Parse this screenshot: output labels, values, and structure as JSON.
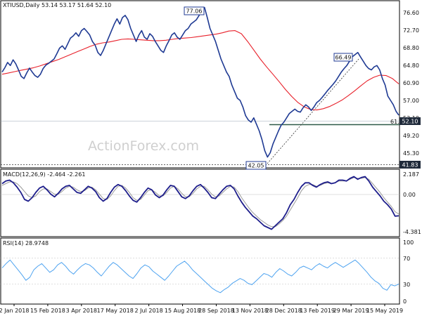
{
  "chart_data": [
    {
      "type": "candlestick",
      "header": "XTIUSD,Daily  53.14 53.17 51.64 52.10",
      "ylim": [
        40.2,
        78.2
      ],
      "y_ticks": [
        "76.60",
        "72.70",
        "68.80",
        "64.80",
        "60.90",
        "57.00",
        "53.10",
        "49.20",
        "45.30",
        "41.83"
      ],
      "x_ticks": [
        "2 Jan 2018",
        "15 Feb 2018",
        "3 Apr 2018",
        "17 May 2018",
        "2 Jul 2018",
        "15 Aug 2018",
        "28 Sep 2018",
        "13 Nov 2018",
        "28 Dec 2018",
        "13 Feb 2019",
        "29 Mar 2019",
        "15 May 2019"
      ],
      "price_series": [
        62.0,
        63.0,
        64.2,
        63.5,
        64.8,
        63.9,
        62.5,
        61.0,
        60.5,
        61.8,
        62.9,
        62.0,
        61.2,
        60.8,
        61.5,
        62.8,
        63.6,
        64.0,
        64.5,
        65.0,
        66.2,
        67.5,
        68.0,
        67.2,
        68.5,
        69.8,
        70.3,
        71.0,
        70.2,
        71.5,
        72.0,
        71.3,
        70.5,
        69.0,
        68.2,
        66.5,
        65.8,
        67.0,
        68.5,
        70.0,
        71.5,
        73.0,
        74.2,
        73.0,
        74.5,
        75.0,
        74.0,
        72.0,
        70.5,
        69.0,
        70.5,
        71.5,
        70.0,
        69.5,
        70.8,
        70.2,
        69.0,
        68.0,
        67.0,
        66.5,
        68.0,
        69.2,
        70.5,
        71.0,
        70.0,
        69.5,
        70.5,
        71.5,
        72.0,
        73.0,
        73.5,
        74.0,
        75.0,
        76.0,
        76.8,
        74.5,
        72.0,
        70.5,
        69.0,
        67.0,
        65.0,
        63.5,
        62.0,
        61.0,
        59.0,
        57.5,
        56.0,
        55.5,
        54.0,
        52.0,
        51.0,
        50.5,
        51.5,
        50.0,
        48.5,
        46.5,
        44.0,
        42.5,
        43.5,
        45.5,
        47.0,
        48.5,
        49.8,
        50.5,
        51.5,
        52.5,
        53.0,
        53.5,
        53.0,
        52.8,
        53.8,
        54.5,
        54.0,
        53.2,
        54.0,
        55.0,
        55.5,
        56.2,
        57.0,
        57.8,
        58.5,
        59.2,
        60.0,
        61.0,
        62.0,
        62.8,
        63.5,
        64.5,
        65.5,
        66.0,
        66.5,
        65.5,
        64.5,
        63.5,
        62.8,
        62.5,
        63.2,
        63.5,
        62.5,
        60.5,
        59.0,
        56.5,
        55.5,
        54.5,
        53.0,
        52.1
      ],
      "ma_series": [
        61.5,
        61.8,
        62.1,
        62.4,
        62.7,
        63.0,
        63.4,
        63.9,
        64.4,
        64.9,
        65.5,
        66.1,
        66.7,
        67.3,
        67.9,
        68.4,
        68.7,
        68.9,
        69.2,
        69.5,
        69.6,
        69.5,
        69.4,
        69.3,
        69.2,
        69.2,
        69.3,
        69.5,
        69.7,
        69.8,
        69.9,
        70.1,
        70.3,
        70.5,
        70.7,
        71.0,
        71.4,
        71.5,
        70.8,
        69.0,
        67.0,
        65.0,
        63.2,
        61.5,
        59.8,
        58.0,
        56.4,
        55.0,
        54.0,
        53.4,
        53.3,
        53.6,
        54.1,
        54.8,
        55.6,
        56.6,
        57.7,
        58.9,
        60.0,
        60.8,
        61.3,
        61.2,
        60.5,
        59.3
      ]
    },
    {
      "type": "line",
      "title": "MACD(12,26,9) -2.464 -2.261",
      "ylim": [
        -4.6,
        2.6
      ],
      "y_ticks": [
        "2.187",
        "0.00",
        "-4.381"
      ],
      "macd_series": [
        1.2,
        1.5,
        1.6,
        1.3,
        0.8,
        0.2,
        -0.6,
        -0.8,
        -0.4,
        0.2,
        0.7,
        0.9,
        0.5,
        0.0,
        -0.3,
        0.1,
        0.6,
        0.9,
        1.0,
        0.6,
        0.2,
        0.1,
        0.5,
        0.9,
        0.7,
        0.3,
        -0.4,
        -0.8,
        -0.5,
        0.2,
        0.8,
        1.1,
        0.9,
        0.4,
        -0.2,
        -0.7,
        -0.9,
        -0.4,
        0.2,
        0.7,
        0.5,
        -0.1,
        -0.4,
        -0.1,
        0.5,
        1.0,
        0.9,
        0.3,
        -0.3,
        -0.5,
        -0.2,
        0.4,
        0.9,
        1.1,
        0.7,
        0.2,
        -0.4,
        -0.5,
        0.0,
        0.5,
        0.9,
        1.0,
        0.6,
        -0.2,
        -0.9,
        -1.5,
        -2.0,
        -2.5,
        -2.8,
        -3.2,
        -3.6,
        -3.8,
        -4.0,
        -3.6,
        -3.2,
        -2.8,
        -2.1,
        -1.2,
        -0.6,
        0.2,
        0.9,
        1.3,
        1.3,
        1.0,
        0.8,
        1.1,
        1.3,
        1.4,
        1.2,
        1.3,
        1.6,
        1.6,
        1.5,
        1.8,
        2.0,
        1.7,
        1.9,
        2.0,
        1.5,
        0.8,
        0.3,
        -0.2,
        -0.8,
        -1.2,
        -1.7,
        -2.5,
        -2.46
      ],
      "signal_series": [
        1.0,
        1.2,
        1.4,
        1.4,
        1.2,
        0.8,
        0.3,
        -0.2,
        -0.4,
        -0.2,
        0.3,
        0.6,
        0.6,
        0.3,
        0.0,
        0.0,
        0.3,
        0.7,
        0.9,
        0.8,
        0.5,
        0.3,
        0.4,
        0.7,
        0.8,
        0.5,
        0.0,
        -0.5,
        -0.6,
        -0.2,
        0.4,
        0.9,
        1.0,
        0.7,
        0.2,
        -0.4,
        -0.7,
        -0.6,
        -0.1,
        0.4,
        0.5,
        0.2,
        -0.2,
        -0.2,
        0.2,
        0.7,
        0.9,
        0.6,
        0.1,
        -0.3,
        -0.3,
        0.1,
        0.6,
        0.9,
        0.9,
        0.5,
        0.0,
        -0.3,
        -0.2,
        0.2,
        0.6,
        0.9,
        0.8,
        0.3,
        -0.4,
        -1.0,
        -1.6,
        -2.1,
        -2.5,
        -2.9,
        -3.2,
        -3.5,
        -3.7,
        -3.7,
        -3.4,
        -3.0,
        -2.5,
        -1.8,
        -1.1,
        -0.4,
        0.4,
        0.9,
        1.1,
        1.1,
        0.9,
        1.0,
        1.2,
        1.3,
        1.2,
        1.3,
        1.5,
        1.5,
        1.5,
        1.7,
        1.9,
        1.8,
        1.8,
        1.9,
        1.7,
        1.2,
        0.7,
        0.2,
        -0.4,
        -0.9,
        -1.4,
        -2.0,
        -2.26
      ]
    },
    {
      "type": "line",
      "title": "RSI(14) 28.9748",
      "ylim": [
        0,
        100
      ],
      "y_ticks": [
        "100",
        "70",
        "30",
        "0"
      ],
      "rsi_series": [
        55,
        62,
        68,
        60,
        52,
        44,
        35,
        40,
        52,
        58,
        62,
        55,
        48,
        52,
        60,
        64,
        58,
        50,
        45,
        52,
        58,
        62,
        60,
        55,
        48,
        42,
        50,
        58,
        64,
        60,
        54,
        48,
        42,
        38,
        46,
        55,
        60,
        57,
        50,
        45,
        40,
        35,
        42,
        50,
        58,
        62,
        66,
        60,
        52,
        46,
        40,
        34,
        28,
        22,
        18,
        15,
        20,
        24,
        30,
        34,
        38,
        35,
        30,
        28,
        34,
        40,
        46,
        44,
        40,
        48,
        54,
        50,
        45,
        42,
        48,
        55,
        58,
        55,
        52,
        58,
        62,
        58,
        55,
        60,
        64,
        60,
        56,
        60,
        64,
        68,
        62,
        55,
        48,
        40,
        34,
        30,
        22,
        19,
        28,
        26,
        29
      ]
    }
  ],
  "annotations": {
    "label_peak1": "77.06",
    "label_low": "42.05",
    "label_peak2": "66.49",
    "label_fib": "61.8",
    "price_tag": "52.10",
    "low_level_tag": "41.83"
  },
  "watermark": "ActionForex.com",
  "colors": {
    "price": "#1f3a93",
    "ma": "#e8202a",
    "macd": "#1e1e8c",
    "signal": "#9a9a9a",
    "rsi": "#4ea3f0",
    "tag_bg": "#1f2a3a",
    "annotation_border": "#1f3a93"
  }
}
